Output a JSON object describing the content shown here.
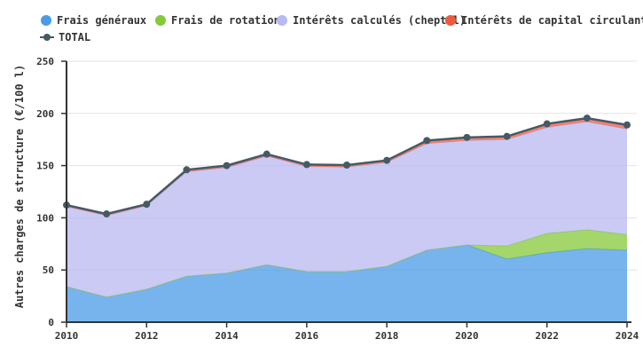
{
  "chart_data": {
    "type": "area",
    "stacked": true,
    "title": "",
    "xlabel": "",
    "ylabel": "Autres charges de strructure (€/100 l)",
    "ylim": [
      0,
      250
    ],
    "yticks": [
      0,
      50,
      100,
      150,
      200,
      250
    ],
    "xticks": [
      2010,
      2012,
      2014,
      2016,
      2018,
      2020,
      2022,
      2024
    ],
    "grid": true,
    "legend_position": "top",
    "x": [
      2010,
      2011,
      2012,
      2013,
      2014,
      2015,
      2016,
      2017,
      2018,
      2019,
      2020,
      2021,
      2022,
      2023,
      2024
    ],
    "series": [
      {
        "name": "Frais généraux",
        "color": "#4a9be8",
        "values": [
          34,
          24,
          31.5,
          44,
          47,
          55,
          48.5,
          48.5,
          53.5,
          69,
          74,
          60.5,
          66.5,
          70.5,
          69
        ]
      },
      {
        "name": "Frais de rotation",
        "color": "#86c83a",
        "values": [
          0,
          0,
          0,
          0,
          0,
          0,
          0,
          0,
          0,
          0,
          0,
          12.5,
          18.5,
          18,
          15
        ]
      },
      {
        "name": "Intérêts calculés (cheptel)",
        "color": "#b8b8f2",
        "values": [
          76.5,
          78,
          80,
          100,
          101,
          104,
          100.5,
          100,
          99.5,
          102,
          100,
          102,
          101.5,
          103.5,
          101
        ]
      },
      {
        "name": "Intérêts de capital circulant",
        "color": "#ef5a3c",
        "values": [
          1.7,
          1.7,
          1.5,
          2,
          2,
          2,
          2,
          2,
          2,
          3,
          3,
          3,
          3.5,
          3.5,
          4
        ]
      },
      {
        "name": "TOTAL",
        "color": "#455a64",
        "type": "line",
        "values": [
          112.2,
          103.7,
          113,
          146,
          150,
          161,
          151,
          150.5,
          155,
          174,
          177,
          178,
          190,
          195.5,
          189
        ]
      }
    ]
  },
  "legend": {
    "items": [
      {
        "label": "Frais généraux",
        "color": "#4a9be8"
      },
      {
        "label": "Frais de rotation",
        "color": "#86c83a"
      },
      {
        "label": "Intérêts calculés (cheptel)",
        "color": "#b8b8f2"
      },
      {
        "label": "Intérêts de capital circulant",
        "color": "#ef5a3c"
      },
      {
        "label": "TOTAL",
        "color": "#455a64"
      }
    ]
  },
  "axis": {
    "ylabel": "Autres charges de strructure (€/100 l)"
  }
}
